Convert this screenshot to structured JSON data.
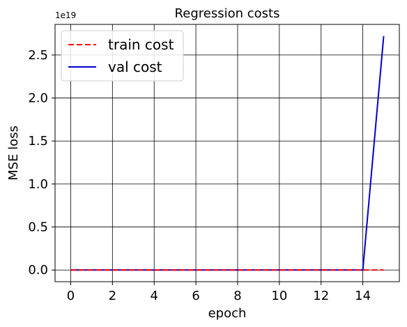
{
  "chart_data": {
    "type": "line",
    "title": "Regression costs",
    "xlabel": "epoch",
    "ylabel": "MSE loss",
    "y_offset_text": "1e19",
    "x_ticks": [
      0,
      2,
      4,
      6,
      8,
      10,
      12,
      14
    ],
    "x_tick_labels": [
      "0",
      "2",
      "4",
      "6",
      "8",
      "10",
      "12",
      "14"
    ],
    "y_ticks": [
      0.0,
      0.5,
      1.0,
      1.5,
      2.0,
      2.5
    ],
    "y_tick_labels": [
      "0.0",
      "0.5",
      "1.0",
      "1.5",
      "2.0",
      "2.5"
    ],
    "xlim": [
      -0.75,
      15.75
    ],
    "ylim": [
      -0.136,
      2.856
    ],
    "grid": true,
    "legend_position": "top-left",
    "x": [
      0,
      1,
      2,
      3,
      4,
      5,
      6,
      7,
      8,
      9,
      10,
      11,
      12,
      13,
      14,
      15
    ],
    "series": [
      {
        "name": "train cost",
        "color": "#ff0000",
        "dash": "dashed",
        "values": [
          0,
          0,
          0,
          0,
          0,
          0,
          0,
          0,
          0,
          0,
          0,
          0,
          0,
          0,
          0,
          0
        ]
      },
      {
        "name": "val cost",
        "color": "#0000cc",
        "dash": "solid",
        "values": [
          0,
          0,
          0,
          0,
          0,
          0,
          0,
          0,
          0,
          0,
          0,
          0,
          0,
          0,
          0,
          2.72
        ]
      }
    ]
  }
}
